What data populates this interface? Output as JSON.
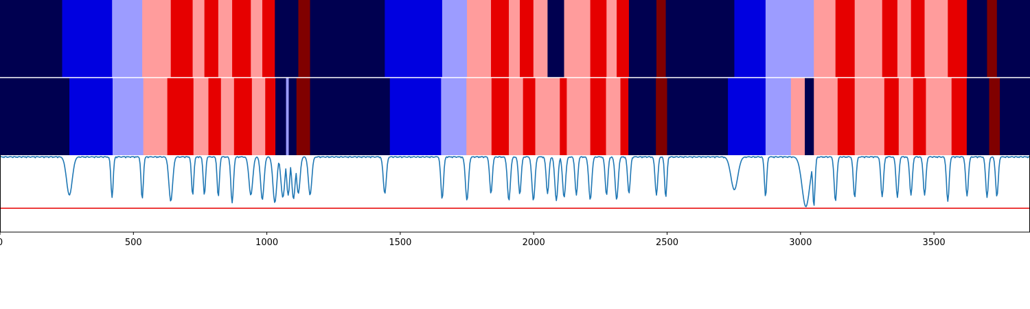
{
  "colors": {
    "dark_navy": "#000050",
    "blue": "#0000e0",
    "light_blue": "#9c9cff",
    "pink": "#ff9c9c",
    "red": "#e60000",
    "dark_red": "#800000",
    "line": "#1f77b4",
    "threshold_line": "#e60000",
    "axis": "#000000"
  },
  "chart_data": {
    "type": "heatmap",
    "title": "",
    "xlabel": "",
    "ylabel": "",
    "xlim": [
      0,
      3860
    ],
    "x_ticks": [
      0,
      500,
      1000,
      1500,
      2000,
      2500,
      3000,
      3500
    ],
    "x_tick_labels": [
      "0",
      "500",
      "1000",
      "1500",
      "2000",
      "2500",
      "3000",
      "3500"
    ],
    "tracks": [
      {
        "segments": [
          [
            0,
            233,
            "dark_navy"
          ],
          [
            233,
            420,
            "blue"
          ],
          [
            420,
            533,
            "light_blue"
          ],
          [
            533,
            640,
            "pink"
          ],
          [
            640,
            722,
            "red"
          ],
          [
            722,
            766,
            "pink"
          ],
          [
            766,
            818,
            "red"
          ],
          [
            818,
            870,
            "pink"
          ],
          [
            870,
            940,
            "red"
          ],
          [
            940,
            983,
            "pink"
          ],
          [
            983,
            1030,
            "red"
          ],
          [
            1030,
            1118,
            "dark_navy"
          ],
          [
            1118,
            1162,
            "dark_red"
          ],
          [
            1162,
            1442,
            "dark_navy"
          ],
          [
            1442,
            1657,
            "blue"
          ],
          [
            1657,
            1750,
            "light_blue"
          ],
          [
            1750,
            1840,
            "pink"
          ],
          [
            1840,
            1907,
            "red"
          ],
          [
            1907,
            1948,
            "pink"
          ],
          [
            1948,
            1999,
            "red"
          ],
          [
            1999,
            2052,
            "pink"
          ],
          [
            2052,
            2114,
            "dark_navy"
          ],
          [
            2114,
            2212,
            "pink"
          ],
          [
            2212,
            2273,
            "red"
          ],
          [
            2273,
            2311,
            "pink"
          ],
          [
            2311,
            2357,
            "red"
          ],
          [
            2357,
            2460,
            "dark_navy"
          ],
          [
            2460,
            2495,
            "dark_red"
          ],
          [
            2495,
            2752,
            "dark_navy"
          ],
          [
            2752,
            2869,
            "blue"
          ],
          [
            2869,
            3050,
            "light_blue"
          ],
          [
            3050,
            3131,
            "pink"
          ],
          [
            3131,
            3203,
            "red"
          ],
          [
            3203,
            3306,
            "pink"
          ],
          [
            3306,
            3363,
            "red"
          ],
          [
            3363,
            3414,
            "pink"
          ],
          [
            3414,
            3465,
            "red"
          ],
          [
            3465,
            3552,
            "pink"
          ],
          [
            3552,
            3624,
            "red"
          ],
          [
            3624,
            3699,
            "dark_navy"
          ],
          [
            3699,
            3736,
            "dark_red"
          ],
          [
            3736,
            3860,
            "dark_navy"
          ]
        ]
      },
      {
        "segments": [
          [
            0,
            260,
            "dark_navy"
          ],
          [
            260,
            422,
            "blue"
          ],
          [
            422,
            537,
            "light_blue"
          ],
          [
            537,
            627,
            "pink"
          ],
          [
            627,
            725,
            "red"
          ],
          [
            725,
            781,
            "pink"
          ],
          [
            781,
            828,
            "red"
          ],
          [
            828,
            877,
            "pink"
          ],
          [
            877,
            944,
            "red"
          ],
          [
            944,
            994,
            "pink"
          ],
          [
            994,
            1032,
            "red"
          ],
          [
            1032,
            1072,
            "dark_navy"
          ],
          [
            1072,
            1082,
            "light_blue"
          ],
          [
            1082,
            1111,
            "dark_navy"
          ],
          [
            1111,
            1162,
            "dark_red"
          ],
          [
            1162,
            1461,
            "dark_navy"
          ],
          [
            1461,
            1653,
            "blue"
          ],
          [
            1653,
            1748,
            "light_blue"
          ],
          [
            1748,
            1842,
            "pink"
          ],
          [
            1842,
            1907,
            "red"
          ],
          [
            1907,
            1960,
            "pink"
          ],
          [
            1960,
            2006,
            "red"
          ],
          [
            2006,
            2098,
            "pink"
          ],
          [
            2098,
            2124,
            "red"
          ],
          [
            2124,
            2212,
            "pink"
          ],
          [
            2212,
            2271,
            "red"
          ],
          [
            2271,
            2325,
            "pink"
          ],
          [
            2325,
            2355,
            "red"
          ],
          [
            2355,
            2458,
            "dark_navy"
          ],
          [
            2458,
            2500,
            "dark_red"
          ],
          [
            2500,
            2728,
            "dark_navy"
          ],
          [
            2728,
            2869,
            "blue"
          ],
          [
            2869,
            2964,
            "light_blue"
          ],
          [
            2964,
            3016,
            "pink"
          ],
          [
            3016,
            3050,
            "dark_navy"
          ],
          [
            3050,
            3139,
            "pink"
          ],
          [
            3139,
            3203,
            "red"
          ],
          [
            3203,
            3314,
            "pink"
          ],
          [
            3314,
            3368,
            "red"
          ],
          [
            3368,
            3422,
            "pink"
          ],
          [
            3422,
            3470,
            "red"
          ],
          [
            3470,
            3566,
            "pink"
          ],
          [
            3566,
            3623,
            "red"
          ],
          [
            3623,
            3707,
            "dark_navy"
          ],
          [
            3707,
            3747,
            "dark_red"
          ],
          [
            3747,
            3860,
            "dark_navy"
          ]
        ]
      }
    ],
    "line_series": {
      "ylim": [
        0,
        1
      ],
      "baseline": 0.98,
      "threshold": 0.31,
      "dips": [
        [
          260,
          15,
          0.48
        ],
        [
          420,
          6,
          0.45
        ],
        [
          533,
          6,
          0.43
        ],
        [
          640,
          10,
          0.4
        ],
        [
          722,
          6,
          0.48
        ],
        [
          766,
          6,
          0.48
        ],
        [
          818,
          6,
          0.46
        ],
        [
          870,
          7,
          0.38
        ],
        [
          940,
          10,
          0.48
        ],
        [
          983,
          9,
          0.42
        ],
        [
          1030,
          10,
          0.38
        ],
        [
          1060,
          10,
          0.45
        ],
        [
          1080,
          8,
          0.48
        ],
        [
          1100,
          9,
          0.43
        ],
        [
          1118,
          9,
          0.5
        ],
        [
          1162,
          9,
          0.48
        ],
        [
          1442,
          8,
          0.5
        ],
        [
          1657,
          7,
          0.43
        ],
        [
          1750,
          8,
          0.41
        ],
        [
          1840,
          7,
          0.5
        ],
        [
          1907,
          8,
          0.41
        ],
        [
          1948,
          7,
          0.49
        ],
        [
          1999,
          8,
          0.41
        ],
        [
          2052,
          7,
          0.5
        ],
        [
          2085,
          8,
          0.41
        ],
        [
          2114,
          8,
          0.45
        ],
        [
          2160,
          7,
          0.48
        ],
        [
          2212,
          8,
          0.42
        ],
        [
          2273,
          7,
          0.48
        ],
        [
          2311,
          8,
          0.42
        ],
        [
          2357,
          7,
          0.5
        ],
        [
          2460,
          7,
          0.48
        ],
        [
          2495,
          6,
          0.45
        ],
        [
          2752,
          18,
          0.55
        ],
        [
          2869,
          6,
          0.46
        ],
        [
          3020,
          20,
          0.33
        ],
        [
          3050,
          6,
          0.33
        ],
        [
          3131,
          7,
          0.4
        ],
        [
          3203,
          7,
          0.45
        ],
        [
          3306,
          7,
          0.46
        ],
        [
          3363,
          7,
          0.45
        ],
        [
          3414,
          7,
          0.48
        ],
        [
          3465,
          7,
          0.48
        ],
        [
          3552,
          7,
          0.4
        ],
        [
          3624,
          7,
          0.47
        ],
        [
          3699,
          7,
          0.45
        ],
        [
          3736,
          7,
          0.46
        ]
      ]
    }
  }
}
